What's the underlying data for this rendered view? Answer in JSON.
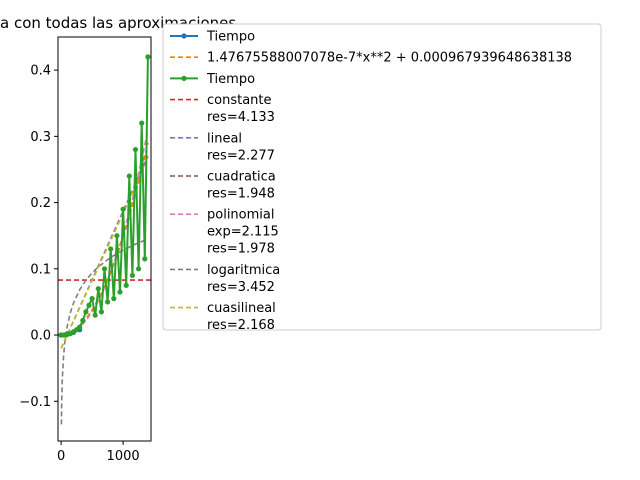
{
  "chart_data": {
    "type": "line",
    "title": "a con todas las aproximaciones",
    "xlabel": "",
    "ylabel": "",
    "xlim": [
      -50,
      1450
    ],
    "ylim": [
      -0.16,
      0.45
    ],
    "x_ticks": [
      0,
      1000
    ],
    "y_ticks": [
      -0.1,
      0.0,
      0.1,
      0.2,
      0.3,
      0.4
    ],
    "legend_position": "outside-right",
    "series": [
      {
        "name": "Tiempo",
        "style": "line-markers",
        "color": "#1f77b4",
        "x": [
          0,
          100,
          200,
          300
        ],
        "y": [
          0.0,
          0.002,
          0.004,
          0.008
        ]
      },
      {
        "name": "1.47675588007078e-7*x**2 + 0.000967939648638138",
        "style": "dashed",
        "color": "#ff7f0e",
        "formula": {
          "a": 1.47675588007078e-07,
          "b": 0.000967939648638138
        }
      },
      {
        "name": "Tiempo",
        "style": "line-markers",
        "color": "#2ca02c",
        "x": [
          0,
          50,
          100,
          150,
          200,
          250,
          300,
          350,
          400,
          450,
          500,
          550,
          600,
          650,
          700,
          750,
          800,
          850,
          900,
          950,
          1000,
          1050,
          1100,
          1150,
          1200,
          1250,
          1300,
          1350,
          1400
        ],
        "y": [
          0.0,
          0.0,
          0.001,
          0.002,
          0.005,
          0.008,
          0.012,
          0.022,
          0.035,
          0.045,
          0.055,
          0.03,
          0.07,
          0.035,
          0.1,
          0.05,
          0.13,
          0.055,
          0.15,
          0.065,
          0.19,
          0.075,
          0.24,
          0.09,
          0.28,
          0.1,
          0.32,
          0.115,
          0.42
        ]
      },
      {
        "name": "constante\nres=4.133",
        "style": "dashed",
        "color": "#d62728",
        "y_const": 0.083
      },
      {
        "name": "lineal\nres=2.277",
        "style": "dashed",
        "color": "#9467bd",
        "x": [
          0,
          1400
        ],
        "y": [
          -0.02,
          0.27
        ]
      },
      {
        "name": "cuadratica\nres=1.948",
        "style": "dashed",
        "color": "#8c564b",
        "x": [
          0,
          1400
        ],
        "y": [
          0.001,
          0.29
        ]
      },
      {
        "name": "polinomial\nexp=2.115\nres=1.978",
        "style": "dashed",
        "color": "#e377c2",
        "x": [
          0,
          1400
        ],
        "y": [
          0.0,
          0.31
        ]
      },
      {
        "name": "logaritmica\nres=3.452",
        "style": "dashed",
        "color": "#7f7f7f",
        "x": [
          5,
          1400
        ],
        "y": [
          -0.135,
          0.145
        ]
      },
      {
        "name": "cuasilineal\nres=2.168",
        "style": "dashed",
        "color": "#bcbd22",
        "x": [
          0,
          1400
        ],
        "y": [
          -0.02,
          0.265
        ]
      }
    ]
  }
}
